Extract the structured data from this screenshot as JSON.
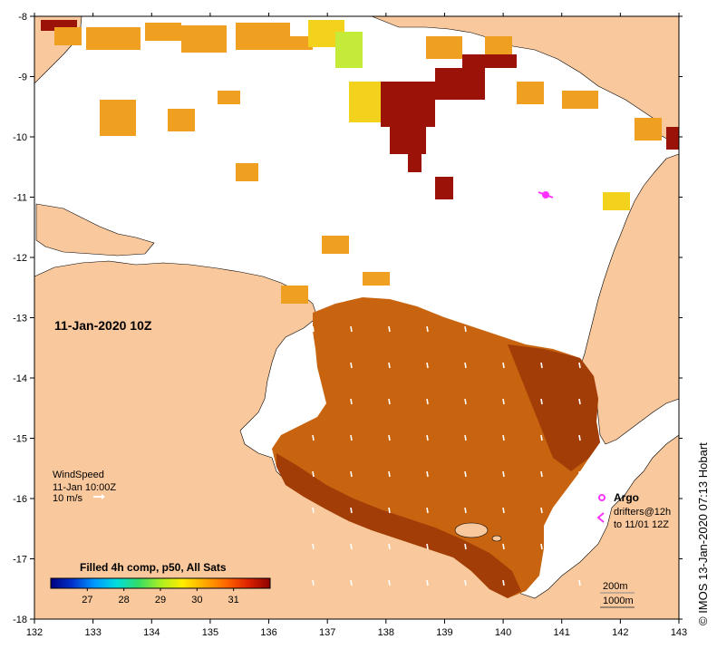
{
  "map": {
    "title": "11-Jan-2020 10Z",
    "x_axis": {
      "min": 132,
      "max": 143,
      "ticks": [
        "132",
        "133",
        "134",
        "135",
        "136",
        "137",
        "138",
        "139",
        "140",
        "141",
        "142",
        "143"
      ]
    },
    "y_axis": {
      "min": -18,
      "max": -8,
      "ticks": [
        "-8",
        "-9",
        "-10",
        "-11",
        "-12",
        "-13",
        "-14",
        "-15",
        "-16",
        "-17",
        "-18"
      ]
    },
    "colors": {
      "land": "#f9c89c",
      "sst_dark": "#a23d08",
      "sst_mid": "#c8640f",
      "sst_light": "#e49626",
      "maroon": "#9a1208",
      "orange": "#f0a020",
      "yellow": "#f3d21e",
      "green": "#c4ea3a",
      "argo": "#ff33ff"
    }
  },
  "wind": {
    "label": "WindSpeed",
    "time": "11-Jan 10:00Z",
    "scale": "10 m/s"
  },
  "legend": {
    "argo": "Argo",
    "drifters": "drifters@12h",
    "drifters_to": "to 11/01 12Z",
    "depth_200": "200m",
    "depth_1000": "1000m"
  },
  "colorbar": {
    "title": "Filled 4h comp, p50, All Sats",
    "ticks": [
      "27",
      "28",
      "29",
      "30",
      "31"
    ],
    "colors": [
      "#00007f",
      "#0033cc",
      "#0099ff",
      "#00dddd",
      "#33dd66",
      "#aaee22",
      "#ffee00",
      "#ffaa00",
      "#ff6600",
      "#dd2200",
      "#8b0000"
    ]
  },
  "credit": "© IMOS 13-Jan-2020 07:13 Hobart"
}
